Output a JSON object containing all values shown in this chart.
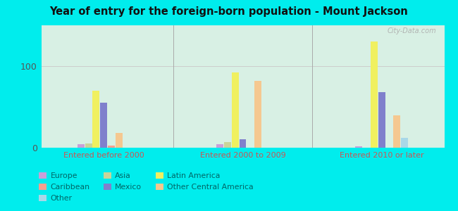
{
  "title": "Year of entry for the foreign-born population - Mount Jackson",
  "groups": [
    "Entered before 2000",
    "Entered 2000 to 2009",
    "Entered 2010 or later"
  ],
  "categories": [
    "Europe",
    "Asia",
    "Latin America",
    "Mexico",
    "Caribbean",
    "Other Central America",
    "Other"
  ],
  "values": [
    [
      4,
      5,
      70,
      55,
      3,
      18,
      0
    ],
    [
      4,
      7,
      92,
      10,
      0,
      82,
      0
    ],
    [
      2,
      0,
      130,
      68,
      0,
      40,
      12
    ]
  ],
  "colors": [
    "#c9a0d8",
    "#c8d49a",
    "#f0f060",
    "#8080cc",
    "#f4a090",
    "#f5c890",
    "#a8d8e8"
  ],
  "background_color": "#00eded",
  "plot_bg": "#d8f0e4",
  "ylim": [
    0,
    150
  ],
  "yticks": [
    0,
    100
  ],
  "legend_order": [
    0,
    4,
    6,
    1,
    3,
    2,
    5
  ],
  "legend_labels": [
    "Europe",
    "Asia",
    "Latin America",
    "Mexico",
    "Caribbean",
    "Other Central America",
    "Other"
  ],
  "legend_colors": [
    "#c9a0d8",
    "#c8d49a",
    "#f0f060",
    "#8080cc",
    "#f4a090",
    "#f5c890",
    "#a8d8e8"
  ],
  "watermark": "City-Data.com",
  "xtick_color": "#cc5555",
  "ytick_color": "#555555"
}
